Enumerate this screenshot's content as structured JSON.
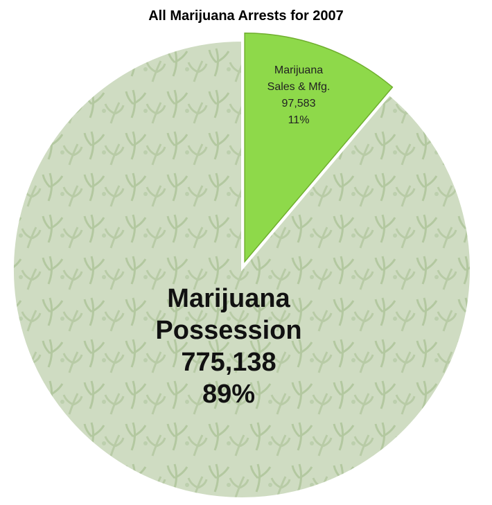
{
  "chart_data": {
    "type": "pie",
    "title": "All Marijuana Arrests for 2007",
    "slices": [
      {
        "label_lines": [
          "Marijuana",
          "Possession"
        ],
        "value": 775138,
        "value_text": "775,138",
        "percent_text": "89%",
        "color": "#c7d6b8",
        "exploded": false
      },
      {
        "label_lines": [
          "Marijuana",
          "Sales & Mfg."
        ],
        "value": 97583,
        "value_text": "97,583",
        "percent_text": "11%",
        "color": "#8ed94a",
        "exploded": true
      }
    ],
    "start_angle": "12 o'clock",
    "direction": "clockwise"
  }
}
